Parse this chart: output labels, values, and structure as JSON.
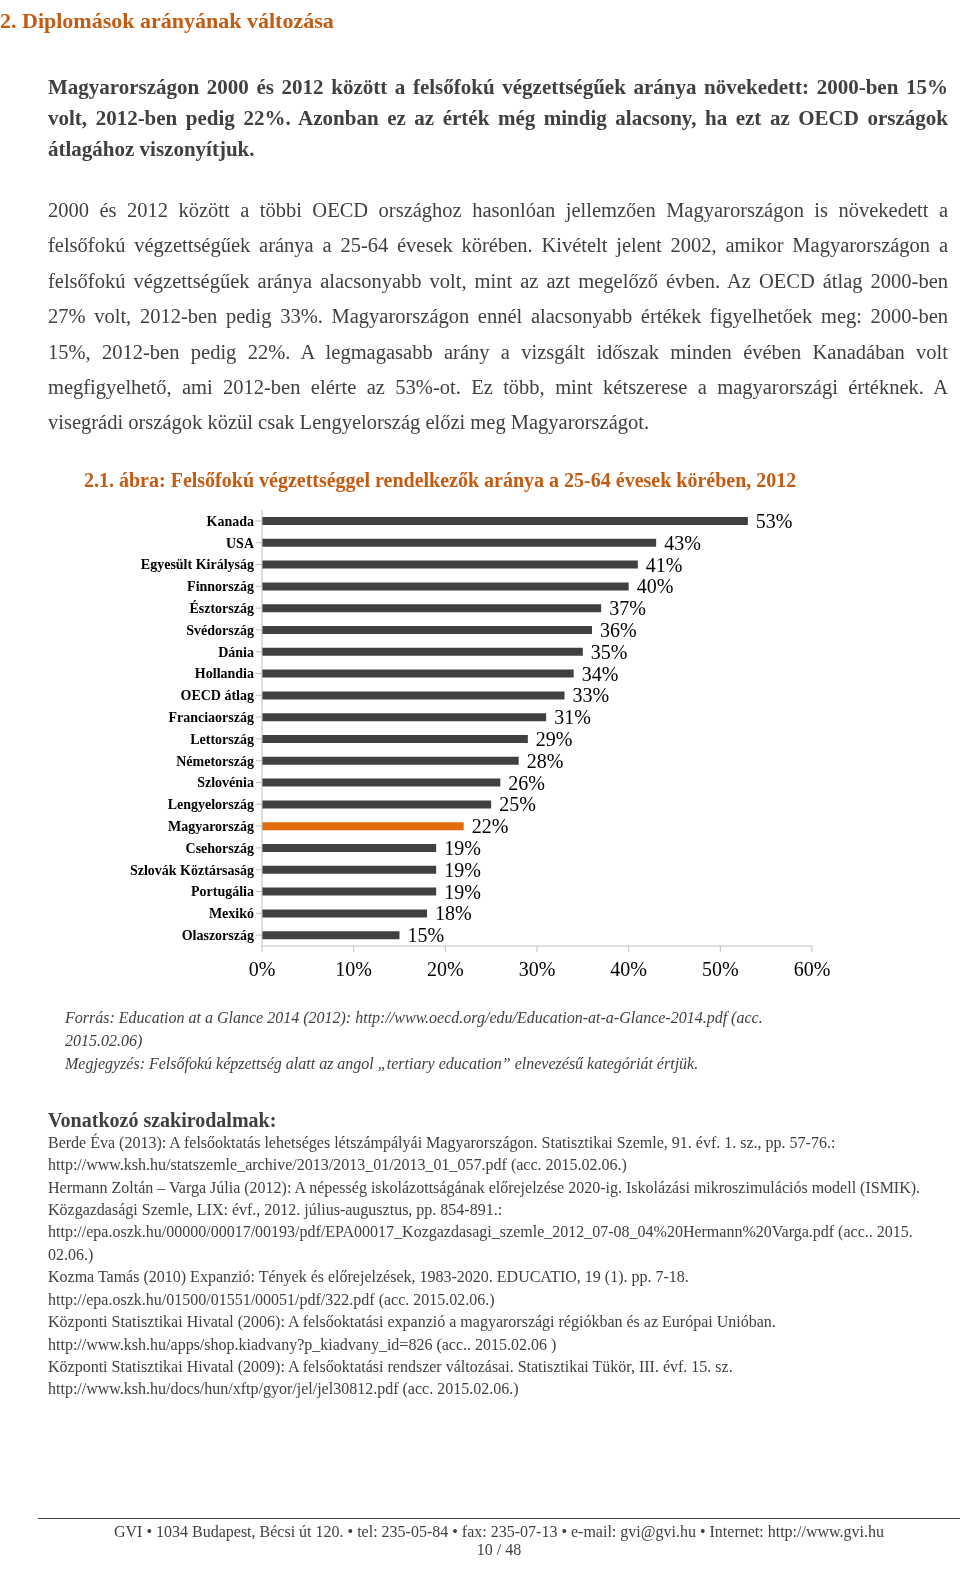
{
  "chart_data": {
    "type": "bar",
    "orientation": "horizontal",
    "title": "2.1. ábra: Felsőfokú végzettséggel rendelkezők aránya a 25-64 évesek körében, 2012",
    "categories": [
      "Kanada",
      "USA",
      "Egyesült Királyság",
      "Finnország",
      "Észtország",
      "Svédország",
      "Dánia",
      "Hollandia",
      "OECD átlag",
      "Franciaország",
      "Lettország",
      "Németország",
      "Szlovénia",
      "Lengyelország",
      "Magyarország",
      "Csehország",
      "Szlovák Köztársaság",
      "Portugália",
      "Mexikó",
      "Olaszország"
    ],
    "values": [
      53,
      43,
      41,
      40,
      37,
      36,
      35,
      34,
      33,
      31,
      29,
      28,
      26,
      25,
      22,
      19,
      19,
      19,
      18,
      15
    ],
    "value_labels": [
      "53%",
      "43%",
      "41%",
      "40%",
      "37%",
      "36%",
      "35%",
      "34%",
      "33%",
      "31%",
      "29%",
      "28%",
      "26%",
      "25%",
      "22%",
      "19%",
      "19%",
      "19%",
      "18%",
      "15%"
    ],
    "colors": [
      "#404040",
      "#404040",
      "#404040",
      "#404040",
      "#404040",
      "#404040",
      "#404040",
      "#404040",
      "#404040",
      "#404040",
      "#404040",
      "#404040",
      "#404040",
      "#404040",
      "#e36c0a",
      "#404040",
      "#404040",
      "#404040",
      "#404040",
      "#404040"
    ],
    "xlim": [
      0,
      60
    ],
    "xticks": [
      {
        "value": 0,
        "label": "0%"
      },
      {
        "value": 10,
        "label": "10%"
      },
      {
        "value": 20,
        "label": "20%"
      },
      {
        "value": 30,
        "label": "30%"
      },
      {
        "value": 40,
        "label": "40%"
      },
      {
        "value": 50,
        "label": "50%"
      },
      {
        "value": 60,
        "label": "60%"
      }
    ],
    "annotations": [
      "2.\tDiplomások arányának változása",
      "Magyarországon 2000 és 2012 között a felsőfokú végzettségűek aránya növekedett: 2000-ben 15% volt, 2012-ben pedig 22%. Azonban ez az érték még mindig alacsony, ha ezt az OECD országok átlagához viszonyítjuk.",
      "2000 és 2012 között a többi OECD országhoz hasonlóan jellemzően Magyarországon is növekedett a felsőfokú végzettségűek aránya a 25-64 évesek körében. Kivételt jelent 2002, amikor Magyarországon a felsőfokú végzettségűek aránya alacsonyabb volt, mint az azt megelőző évben. Az OECD átlag 2000-ben 27% volt, 2012-ben pedig 33%. Magyarországon ennél alacsonyabb értékek figyelhetőek meg: 2000-ben 15%, 2012-ben pedig 22%. A legmagasabb arány a vizsgált időszak minden évében Kanadában volt megfigyelhető, ami 2012-ben elérte az 53%-ot. Ez több, mint kétszerese a magyarországi értéknek. A visegrádi országok közül csak Lengyelország előzi meg Magyarországot.",
      "Forrás: Education at a Glance 2014 (2012): http://www.oecd.org/edu/Education-at-a-Glance-2014.pdf (acc. 2015.02.06)",
      "Megjegyzés: Felsőfokú képzettség alatt az angol „tertiary education” elnevezésű kategóriát értjük.",
      "Vonatkozó szakirodalmak:",
      "Berde Éva (2013): A felsőoktatás lehetséges létszámpályái Magyarországon. Statisztikai Szemle, 91. évf. 1. sz., pp. 57-76.: http://www.ksh.hu/statszemle_archive/2013/2013_01/2013_01_057.pdf (acc. 2015.02.06.)",
      "Hermann Zoltán – Varga Júlia (2012): A népesség iskolázottságának előrejelzése 2020-ig. Iskolázási mikroszimulációs modell (ISMIK). Közgazdasági Szemle, LIX: évf., 2012. július-augusztus, pp. 854-891.: http://epa.oszk.hu/00000/00017/00193/pdf/EPA00017_Kozgazdasagi_szemle_2012_07-08_04%20Hermann%20Varga.pdf (acc.. 2015. 02.06.)",
      "Kozma Tamás (2010) Expanzió: Tények és előrejelzések, 1983-2020. EDUCATIO, 19 (1). pp. 7-18. http://epa.oszk.hu/01500/01551/00051/pdf/322.pdf (acc. 2015.02.06.)",
      "Központi Statisztikai Hivatal (2006): A felsőoktatási expanzió a magyarországi régiókban és az Európai Unióban. http://www.ksh.hu/apps/shop.kiadvany?p_kiadvany_id=826 (acc.. 2015.02.06 )",
      "Központi Statisztikai Hivatal (2009): A felsőoktatási rendszer változásai. Statisztikai Tükör, III. évf. 15. sz. http://www.ksh.hu/docs/hun/xftp/gyor/jel/jel30812.pdf (acc. 2015.02.06.)",
      "GVI • 1034 Budapest, Bécsi út 120. • tel: 235-05-84 • fax: 235-07-13 • e-mail: gvi@gvi.hu • Internet: http://www.gvi.hu",
      "10 / 48"
    ]
  }
}
